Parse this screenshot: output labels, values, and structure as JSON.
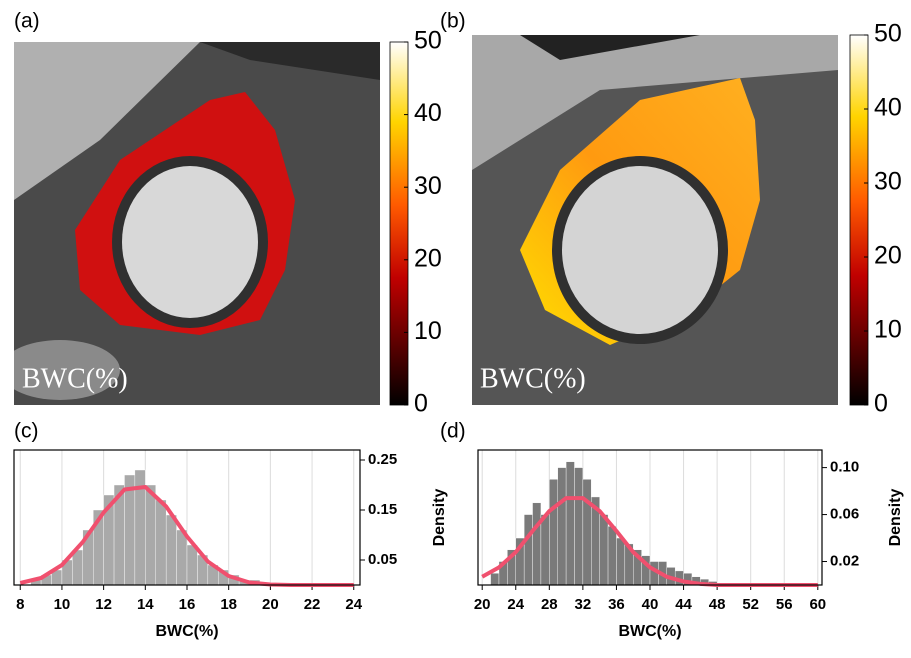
{
  "chart_data": [
    {
      "type": "image",
      "label": "(a)",
      "annotation": "BWC(%)",
      "colorbar": {
        "lim": [
          0,
          50
        ],
        "ticks": [
          0,
          10,
          20,
          30,
          40,
          50
        ]
      }
    },
    {
      "type": "image",
      "label": "(b)",
      "annotation": "BWC(%)",
      "colorbar": {
        "lim": [
          0,
          50
        ],
        "ticks": [
          0,
          10,
          20,
          30,
          40,
          50
        ]
      }
    },
    {
      "type": "histogram",
      "label": "(c)",
      "xlabel": "BWC(%)",
      "ylabel": "Density",
      "color": "#a9a9a9",
      "bins": [
        8.5,
        9,
        9.5,
        10,
        10.5,
        11,
        11.5,
        12,
        12.5,
        13,
        13.5,
        14,
        14.5,
        15,
        15.5,
        16,
        16.5,
        17,
        17.5,
        18,
        18.5,
        19,
        19.5,
        20
      ],
      "counts": [
        0.01,
        0.02,
        0.03,
        0.05,
        0.07,
        0.11,
        0.15,
        0.18,
        0.2,
        0.22,
        0.23,
        0.2,
        0.17,
        0.14,
        0.11,
        0.08,
        0.06,
        0.04,
        0.03,
        0.02,
        0.01,
        0.01,
        0.005
      ],
      "curve": {
        "color": "#f0506e",
        "x": [
          8,
          9,
          10,
          11,
          12,
          13,
          14,
          15,
          16,
          17,
          18,
          19,
          20,
          21,
          22,
          23,
          24
        ],
        "values": [
          0.004,
          0.014,
          0.04,
          0.086,
          0.145,
          0.191,
          0.196,
          0.157,
          0.097,
          0.047,
          0.018,
          0.005,
          0.001,
          0,
          0,
          0,
          0
        ]
      },
      "xlim": [
        7.7,
        24.3
      ],
      "ylim": [
        0,
        0.27
      ],
      "xticks": [
        8,
        10,
        12,
        14,
        16,
        18,
        20,
        22,
        24
      ],
      "yticks": [
        0.05,
        0.15,
        0.25
      ],
      "grid": true
    },
    {
      "type": "histogram",
      "label": "(d)",
      "xlabel": "BWC(%)",
      "ylabel": "Density",
      "color": "#7a7a7a",
      "bins": [
        21,
        22,
        23,
        24,
        25,
        26,
        27,
        28,
        29,
        30,
        31,
        32,
        33,
        34,
        35,
        36,
        37,
        38,
        39,
        40,
        41,
        42,
        43,
        44,
        45,
        46,
        47,
        48
      ],
      "counts": [
        0.01,
        0.02,
        0.03,
        0.04,
        0.06,
        0.07,
        0.06,
        0.09,
        0.1,
        0.105,
        0.1,
        0.09,
        0.075,
        0.06,
        0.05,
        0.04,
        0.035,
        0.03,
        0.025,
        0.02,
        0.02,
        0.015,
        0.012,
        0.01,
        0.007,
        0.005,
        0.003
      ],
      "curve": {
        "color": "#f0506e",
        "x": [
          20,
          22,
          24,
          26,
          28,
          30,
          32,
          34,
          36,
          38,
          40,
          42,
          44,
          46,
          48,
          50,
          52,
          54,
          56,
          58,
          60
        ],
        "values": [
          0.007,
          0.015,
          0.028,
          0.046,
          0.063,
          0.074,
          0.074,
          0.063,
          0.046,
          0.028,
          0.015,
          0.007,
          0.003,
          0.001,
          0,
          0,
          0,
          0,
          0,
          0,
          0
        ]
      },
      "xlim": [
        19.5,
        60.5
      ],
      "ylim": [
        0,
        0.115
      ],
      "xticks": [
        20,
        24,
        28,
        32,
        36,
        40,
        44,
        48,
        52,
        56,
        60
      ],
      "yticks": [
        0.02,
        0.06,
        {
          "value": 0.1,
          "label": "0.10"
        }
      ],
      "grid": true
    }
  ]
}
